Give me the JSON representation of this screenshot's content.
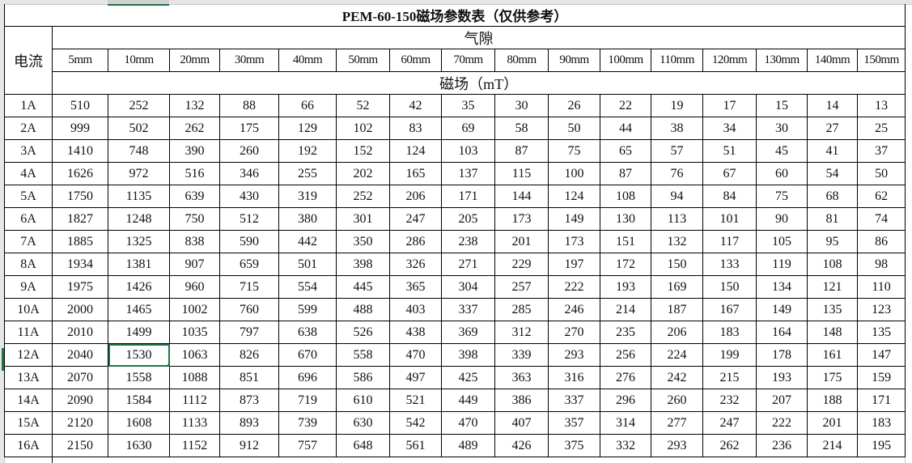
{
  "title": "PEM-60-150磁场参数表（仅供参考）",
  "row_header": "电流",
  "gap_header": "气隙",
  "field_header": "磁场（mT）",
  "gaps": [
    "5mm",
    "10mm",
    "20mm",
    "30mm",
    "40mm",
    "50mm",
    "60mm",
    "70mm",
    "80mm",
    "90mm",
    "100mm",
    "110mm",
    "120mm",
    "130mm",
    "140mm",
    "150mm"
  ],
  "selected_cell": {
    "row": "12A",
    "column": "10mm"
  },
  "accent_color": "#217346",
  "rows": [
    {
      "label": "1A",
      "values": [
        "510",
        "252",
        "132",
        "88",
        "66",
        "52",
        "42",
        "35",
        "30",
        "26",
        "22",
        "19",
        "17",
        "15",
        "14",
        "13"
      ]
    },
    {
      "label": "2A",
      "values": [
        "999",
        "502",
        "262",
        "175",
        "129",
        "102",
        "83",
        "69",
        "58",
        "50",
        "44",
        "38",
        "34",
        "30",
        "27",
        "25"
      ]
    },
    {
      "label": "3A",
      "values": [
        "1410",
        "748",
        "390",
        "260",
        "192",
        "152",
        "124",
        "103",
        "87",
        "75",
        "65",
        "57",
        "51",
        "45",
        "41",
        "37"
      ]
    },
    {
      "label": "4A",
      "values": [
        "1626",
        "972",
        "516",
        "346",
        "255",
        "202",
        "165",
        "137",
        "115",
        "100",
        "87",
        "76",
        "67",
        "60",
        "54",
        "50"
      ]
    },
    {
      "label": "5A",
      "values": [
        "1750",
        "1135",
        "639",
        "430",
        "319",
        "252",
        "206",
        "171",
        "144",
        "124",
        "108",
        "94",
        "84",
        "75",
        "68",
        "62"
      ]
    },
    {
      "label": "6A",
      "values": [
        "1827",
        "1248",
        "750",
        "512",
        "380",
        "301",
        "247",
        "205",
        "173",
        "149",
        "130",
        "113",
        "101",
        "90",
        "81",
        "74"
      ]
    },
    {
      "label": "7A",
      "values": [
        "1885",
        "1325",
        "838",
        "590",
        "442",
        "350",
        "286",
        "238",
        "201",
        "173",
        "151",
        "132",
        "117",
        "105",
        "95",
        "86"
      ]
    },
    {
      "label": "8A",
      "values": [
        "1934",
        "1381",
        "907",
        "659",
        "501",
        "398",
        "326",
        "271",
        "229",
        "197",
        "172",
        "150",
        "133",
        "119",
        "108",
        "98"
      ]
    },
    {
      "label": "9A",
      "values": [
        "1975",
        "1426",
        "960",
        "715",
        "554",
        "445",
        "365",
        "304",
        "257",
        "222",
        "193",
        "169",
        "150",
        "134",
        "121",
        "110"
      ]
    },
    {
      "label": "10A",
      "values": [
        "2000",
        "1465",
        "1002",
        "760",
        "599",
        "488",
        "403",
        "337",
        "285",
        "246",
        "214",
        "187",
        "167",
        "149",
        "135",
        "123"
      ]
    },
    {
      "label": "11A",
      "values": [
        "2010",
        "1499",
        "1035",
        "797",
        "638",
        "526",
        "438",
        "369",
        "312",
        "270",
        "235",
        "206",
        "183",
        "164",
        "148",
        "135"
      ]
    },
    {
      "label": "12A",
      "values": [
        "2040",
        "1530",
        "1063",
        "826",
        "670",
        "558",
        "470",
        "398",
        "339",
        "293",
        "256",
        "224",
        "199",
        "178",
        "161",
        "147"
      ]
    },
    {
      "label": "13A",
      "values": [
        "2070",
        "1558",
        "1088",
        "851",
        "696",
        "586",
        "497",
        "425",
        "363",
        "316",
        "276",
        "242",
        "215",
        "193",
        "175",
        "159"
      ]
    },
    {
      "label": "14A",
      "values": [
        "2090",
        "1584",
        "1112",
        "873",
        "719",
        "610",
        "521",
        "449",
        "386",
        "337",
        "296",
        "260",
        "232",
        "207",
        "188",
        "171"
      ]
    },
    {
      "label": "15A",
      "values": [
        "2120",
        "1608",
        "1133",
        "893",
        "739",
        "630",
        "542",
        "470",
        "407",
        "357",
        "314",
        "277",
        "247",
        "222",
        "201",
        "183"
      ]
    },
    {
      "label": "16A",
      "values": [
        "2150",
        "1630",
        "1152",
        "912",
        "757",
        "648",
        "561",
        "489",
        "426",
        "375",
        "332",
        "293",
        "262",
        "236",
        "214",
        "195"
      ]
    }
  ]
}
